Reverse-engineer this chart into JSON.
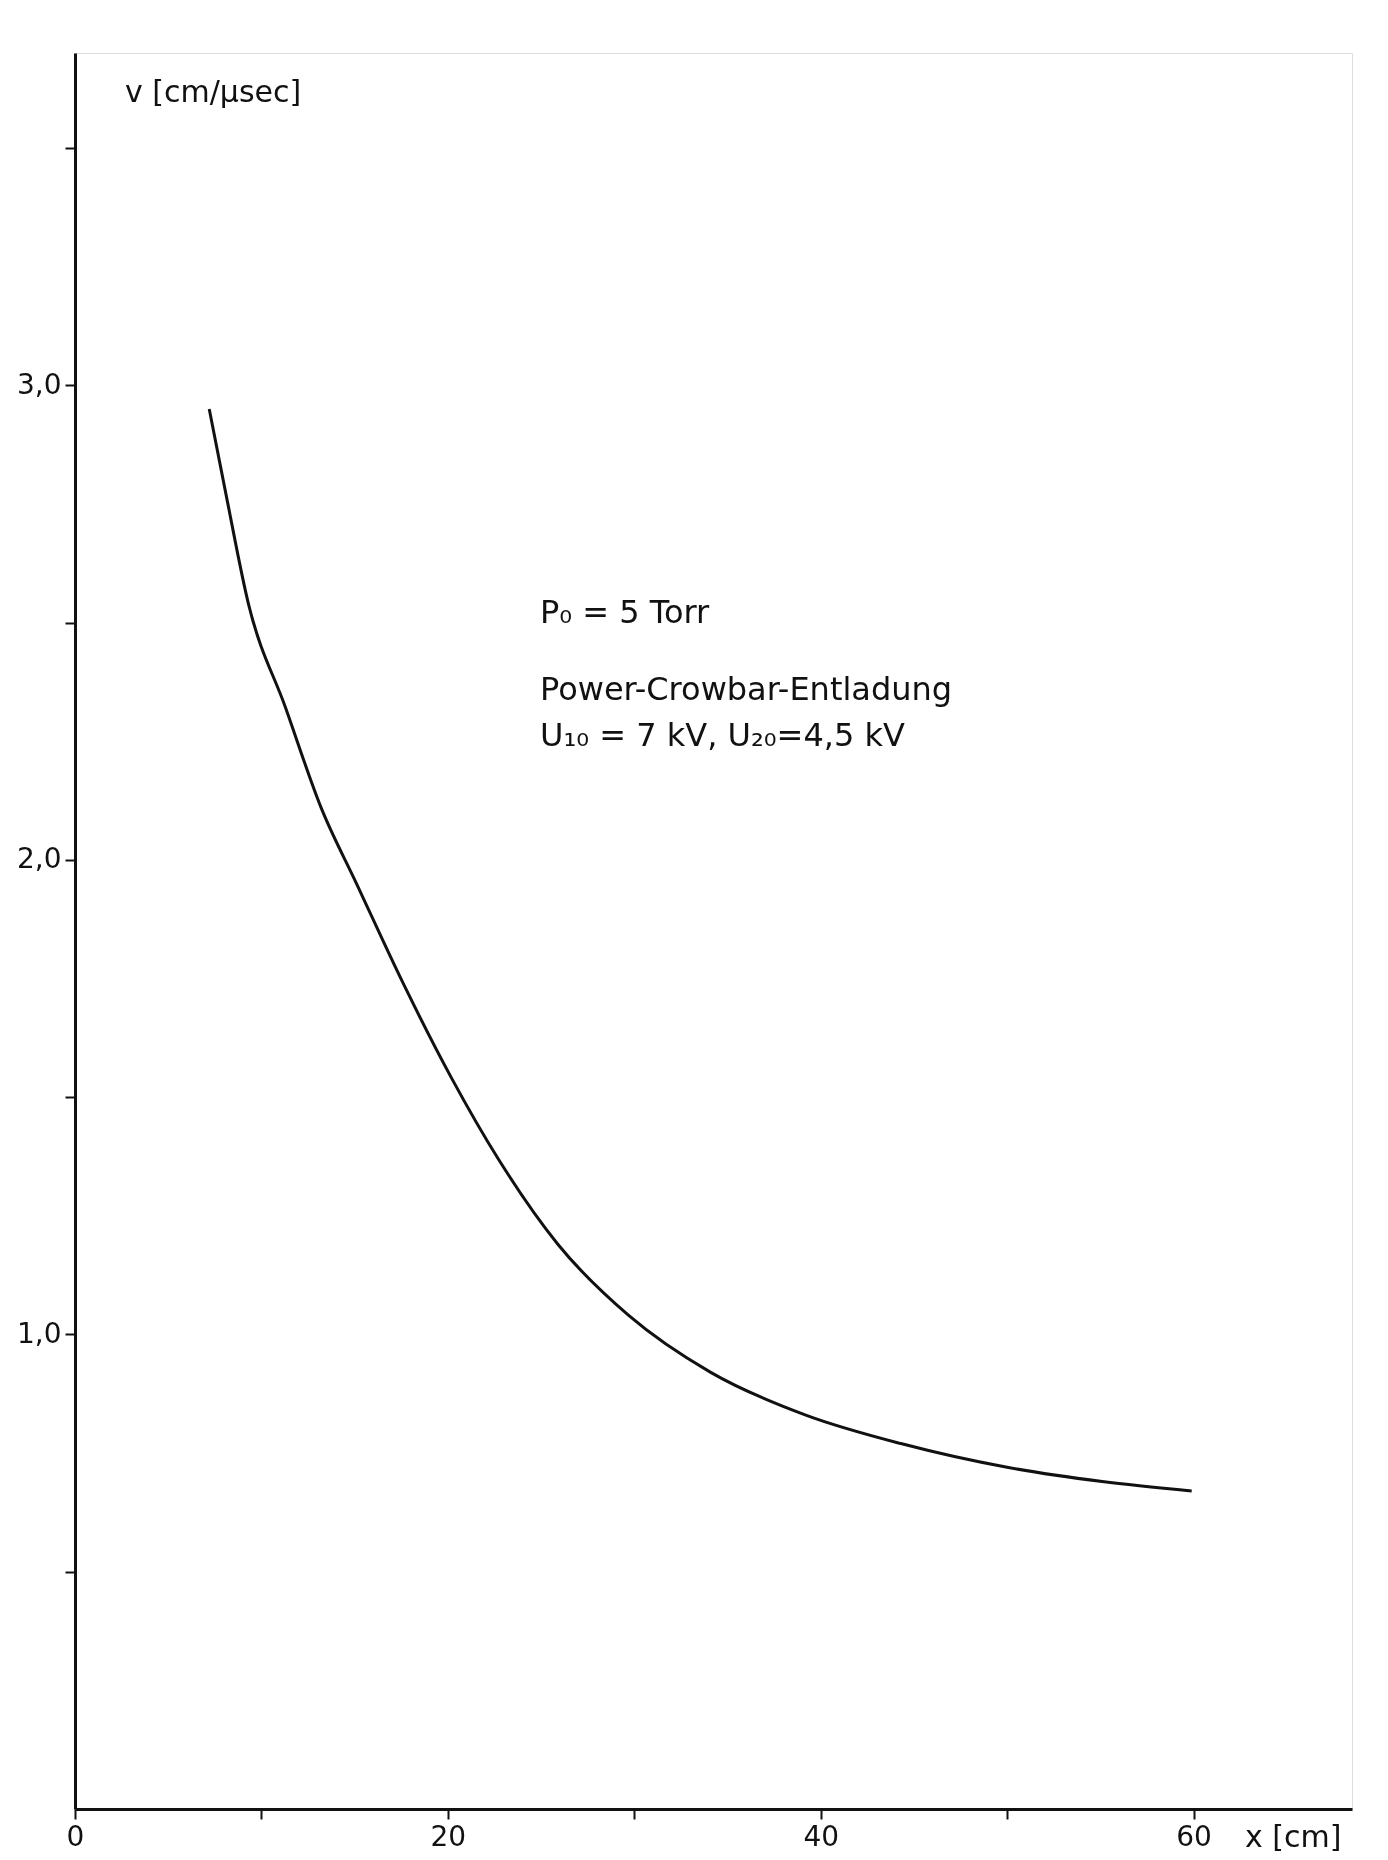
{
  "chart_data": {
    "type": "line",
    "xlabel": "x [cm]",
    "ylabel": "v [cm/µsec]",
    "annotations": [
      "P₀ = 5 Torr",
      "Power-Crowbar-Entladung",
      "U₁₀ = 7 kV,  U₂₀=4,5 kV"
    ],
    "x": [
      7.2,
      8.1,
      9.3,
      11.3,
      13.2,
      15.1,
      17.6,
      20.2,
      22.7,
      25.9,
      29.7,
      34.1,
      39.2,
      44.3,
      50.0,
      55.1,
      59.9
    ],
    "series": [
      {
        "color": "#111111",
        "values": [
          2.95,
          2.77,
          2.54,
          2.32,
          2.11,
          1.95,
          1.74,
          1.54,
          1.37,
          1.19,
          1.04,
          0.92,
          0.83,
          0.77,
          0.72,
          0.69,
          0.67
        ]
      }
    ],
    "xlim": [
      0,
      68.5
    ],
    "ylim": [
      0,
      3.7
    ],
    "xticks": [
      0,
      {
        "value": 10,
        "label": null
      },
      20,
      {
        "value": 30,
        "label": null
      },
      40,
      {
        "value": 50,
        "label": null
      },
      60
    ],
    "yticks": [
      {
        "value": 0.5,
        "label": null
      },
      {
        "value": 1,
        "label": "1,0"
      },
      {
        "value": 1.5,
        "label": null
      },
      {
        "value": 2,
        "label": "2,0"
      },
      {
        "value": 2.5,
        "label": null
      },
      {
        "value": 3,
        "label": "3,0"
      },
      {
        "value": 3.5,
        "label": null
      }
    ],
    "grid": false,
    "marker": "none",
    "line_style": "solid"
  }
}
